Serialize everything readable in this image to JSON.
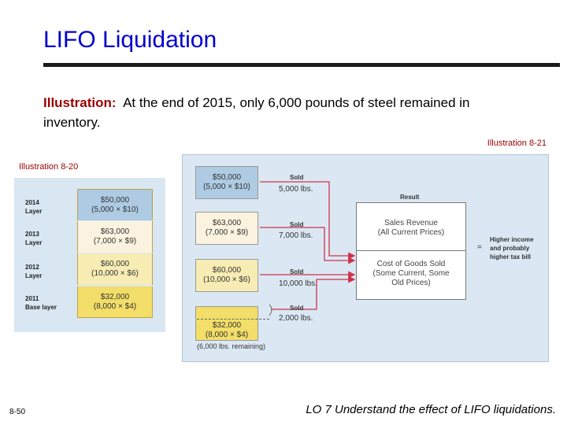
{
  "slide": {
    "title": "LIFO Liquidation",
    "intro_lead": "Illustration:",
    "intro_text": "At the end of 2015, only 6,000 pounds of steel remained in inventory.",
    "ref_8_21": "Illustration 8-21",
    "ref_8_20": "Illustration 8-20",
    "slide_number": "8-50",
    "learning_objective": "LO 7  Understand the effect of LIFO liquidations."
  },
  "illustration_8_20": {
    "layers": [
      {
        "year": "2014",
        "label": "Layer",
        "amount": "$50,000",
        "detail": "(5,000 × $10)",
        "color": "#aecbe3"
      },
      {
        "year": "2013",
        "label": "Layer",
        "amount": "$63,000",
        "detail": "(7,000 × $9)",
        "color": "#fbf3df"
      },
      {
        "year": "2012",
        "label": "Layer",
        "amount": "$60,000",
        "detail": "(10,000 × $6)",
        "color": "#f7ecb4"
      },
      {
        "year": "2011",
        "label": "Base layer",
        "amount": "$32,000",
        "detail": "(8,000 × $4)",
        "color": "#f2de68"
      }
    ]
  },
  "illustration_8_21": {
    "layers": [
      {
        "amount": "$50,000",
        "detail": "(5,000 × $10)",
        "sold_label": "Sold",
        "sold_qty": "5,000 lbs.",
        "color": "#aecbe3"
      },
      {
        "amount": "$63,000",
        "detail": "(7,000 × $9)",
        "sold_label": "Sold",
        "sold_qty": "7,000 lbs.",
        "color": "#fbf3df"
      },
      {
        "amount": "$60,000",
        "detail": "(10,000 × $6)",
        "sold_label": "Sold",
        "sold_qty": "10,000 lbs.",
        "color": "#f7ecb4"
      },
      {
        "amount": "$32,000",
        "detail": "(8,000 × $4)",
        "sold_label": "Sold",
        "sold_qty": "2,000 lbs.",
        "color": "#f2de68"
      }
    ],
    "result_label": "Result",
    "sales_revenue": "Sales Revenue",
    "sales_revenue_note": "(All Current Prices)",
    "cogs": "Cost of Goods Sold",
    "cogs_note_1": "(Some Current, Some",
    "cogs_note_2": "Old Prices)",
    "equals": "=",
    "higher_1": "Higher income",
    "higher_2": "and probably",
    "higher_3": "higher tax bill",
    "remaining": "(6,000 lbs. remaining)",
    "arrow_color": "#d0324a"
  }
}
